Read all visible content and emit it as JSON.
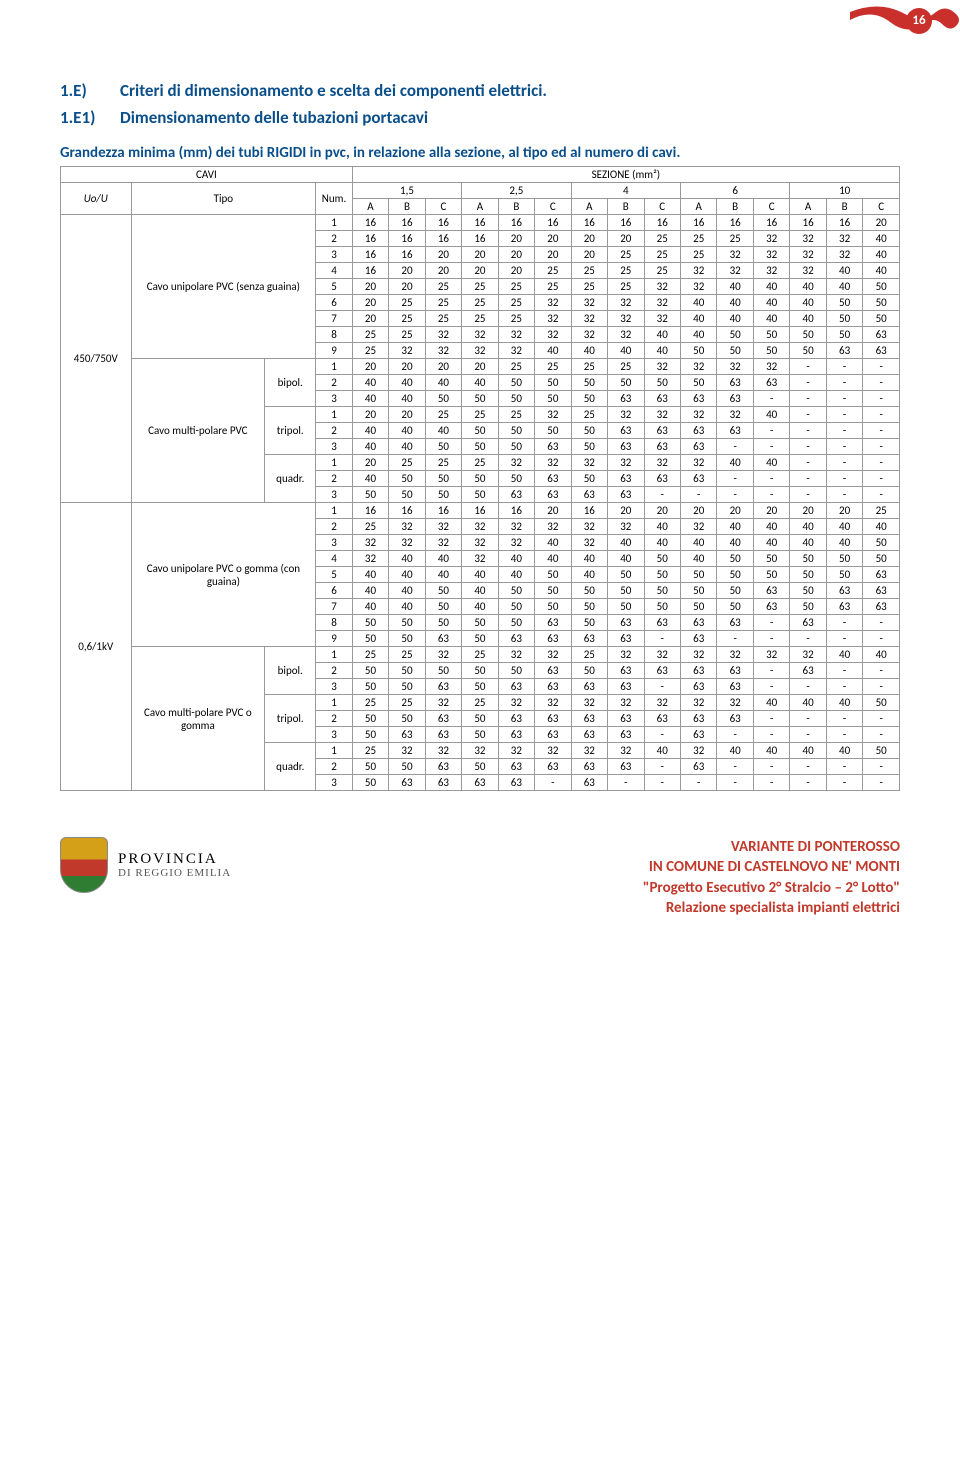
{
  "page_number": "16",
  "section_num_1": "1.E)",
  "section_title_1": "Criteri di dimensionamento e scelta dei componenti elettrici.",
  "section_num_2": "1.E1)",
  "section_title_2": "Dimensionamento delle tubazioni portacavi",
  "table_caption": "Grandezza minima (mm) dei tubi RIGIDI in pvc, in relazione alla sezione, al tipo ed al numero di cavi.",
  "labels": {
    "cavi": "CAVI",
    "sezione": "SEZIONE (mm²)",
    "uou": "Uo/U",
    "tipo": "Tipo",
    "num": "Num."
  },
  "section_headers": [
    "1,5",
    "2,5",
    "4",
    "6",
    "10"
  ],
  "abc": [
    "A",
    "B",
    "C"
  ],
  "voltages": [
    "450/750V",
    "0,6/1kV"
  ],
  "cable_types": {
    "uni_senza": "Cavo unipolare PVC (senza guaina)",
    "multi_pvc": "Cavo multi-polare PVC",
    "uni_con": "Cavo unipolare PVC o gomma (con guaina)",
    "multi_gomma": "Cavo multi-polare PVC o gomma"
  },
  "subtypes": {
    "bipol": "bipol.",
    "tripol": "tripol.",
    "quadr": "quadr."
  },
  "rows_450_uni": [
    [
      "1",
      "16",
      "16",
      "16",
      "16",
      "16",
      "16",
      "16",
      "16",
      "16",
      "16",
      "16",
      "16",
      "16",
      "16",
      "20"
    ],
    [
      "2",
      "16",
      "16",
      "16",
      "16",
      "20",
      "20",
      "20",
      "20",
      "25",
      "25",
      "25",
      "32",
      "32",
      "32",
      "40"
    ],
    [
      "3",
      "16",
      "16",
      "20",
      "20",
      "20",
      "20",
      "20",
      "25",
      "25",
      "25",
      "32",
      "32",
      "32",
      "32",
      "40"
    ],
    [
      "4",
      "16",
      "20",
      "20",
      "20",
      "20",
      "25",
      "25",
      "25",
      "25",
      "32",
      "32",
      "32",
      "32",
      "40",
      "40"
    ],
    [
      "5",
      "20",
      "20",
      "25",
      "25",
      "25",
      "25",
      "25",
      "25",
      "32",
      "32",
      "40",
      "40",
      "40",
      "40",
      "50"
    ],
    [
      "6",
      "20",
      "25",
      "25",
      "25",
      "25",
      "32",
      "32",
      "32",
      "32",
      "40",
      "40",
      "40",
      "40",
      "50",
      "50"
    ],
    [
      "7",
      "20",
      "25",
      "25",
      "25",
      "25",
      "32",
      "32",
      "32",
      "32",
      "40",
      "40",
      "40",
      "40",
      "50",
      "50"
    ],
    [
      "8",
      "25",
      "25",
      "32",
      "32",
      "32",
      "32",
      "32",
      "32",
      "40",
      "40",
      "50",
      "50",
      "50",
      "50",
      "63"
    ],
    [
      "9",
      "25",
      "32",
      "32",
      "32",
      "32",
      "40",
      "40",
      "40",
      "40",
      "50",
      "50",
      "50",
      "50",
      "63",
      "63"
    ]
  ],
  "rows_450_bipol": [
    [
      "1",
      "20",
      "20",
      "20",
      "20",
      "25",
      "25",
      "25",
      "25",
      "32",
      "32",
      "32",
      "32",
      "-",
      "-",
      "-"
    ],
    [
      "2",
      "40",
      "40",
      "40",
      "40",
      "50",
      "50",
      "50",
      "50",
      "50",
      "50",
      "63",
      "63",
      "-",
      "-",
      "-"
    ],
    [
      "3",
      "40",
      "40",
      "50",
      "50",
      "50",
      "50",
      "50",
      "63",
      "63",
      "63",
      "63",
      "-",
      "-",
      "-",
      "-"
    ]
  ],
  "rows_450_tripol": [
    [
      "1",
      "20",
      "20",
      "25",
      "25",
      "25",
      "32",
      "25",
      "32",
      "32",
      "32",
      "32",
      "40",
      "-",
      "-",
      "-"
    ],
    [
      "2",
      "40",
      "40",
      "40",
      "50",
      "50",
      "50",
      "50",
      "63",
      "63",
      "63",
      "63",
      "-",
      "-",
      "-",
      "-"
    ],
    [
      "3",
      "40",
      "40",
      "50",
      "50",
      "50",
      "63",
      "50",
      "63",
      "63",
      "63",
      "-",
      "-",
      "-",
      "-",
      "-"
    ]
  ],
  "rows_450_quadr": [
    [
      "1",
      "20",
      "25",
      "25",
      "25",
      "32",
      "32",
      "32",
      "32",
      "32",
      "32",
      "40",
      "40",
      "-",
      "-",
      "-"
    ],
    [
      "2",
      "40",
      "50",
      "50",
      "50",
      "50",
      "63",
      "50",
      "63",
      "63",
      "63",
      "-",
      "-",
      "-",
      "-",
      "-"
    ],
    [
      "3",
      "50",
      "50",
      "50",
      "50",
      "63",
      "63",
      "63",
      "63",
      "-",
      "-",
      "-",
      "-",
      "-",
      "-",
      "-"
    ]
  ],
  "rows_06_uni": [
    [
      "1",
      "16",
      "16",
      "16",
      "16",
      "16",
      "20",
      "16",
      "20",
      "20",
      "20",
      "20",
      "20",
      "20",
      "20",
      "25"
    ],
    [
      "2",
      "25",
      "32",
      "32",
      "32",
      "32",
      "32",
      "32",
      "32",
      "40",
      "32",
      "40",
      "40",
      "40",
      "40",
      "40"
    ],
    [
      "3",
      "32",
      "32",
      "32",
      "32",
      "32",
      "40",
      "32",
      "40",
      "40",
      "40",
      "40",
      "40",
      "40",
      "40",
      "50"
    ],
    [
      "4",
      "32",
      "40",
      "40",
      "32",
      "40",
      "40",
      "40",
      "40",
      "50",
      "40",
      "50",
      "50",
      "50",
      "50",
      "50"
    ],
    [
      "5",
      "40",
      "40",
      "40",
      "40",
      "40",
      "50",
      "40",
      "50",
      "50",
      "50",
      "50",
      "50",
      "50",
      "50",
      "63"
    ],
    [
      "6",
      "40",
      "40",
      "50",
      "40",
      "50",
      "50",
      "50",
      "50",
      "50",
      "50",
      "50",
      "63",
      "50",
      "63",
      "63"
    ],
    [
      "7",
      "40",
      "40",
      "50",
      "40",
      "50",
      "50",
      "50",
      "50",
      "50",
      "50",
      "50",
      "63",
      "50",
      "63",
      "63"
    ],
    [
      "8",
      "50",
      "50",
      "50",
      "50",
      "50",
      "63",
      "50",
      "63",
      "63",
      "63",
      "63",
      "-",
      "63",
      "-",
      "-"
    ],
    [
      "9",
      "50",
      "50",
      "63",
      "50",
      "63",
      "63",
      "63",
      "63",
      "-",
      "63",
      "-",
      "-",
      "-",
      "-",
      "-"
    ]
  ],
  "rows_06_bipol": [
    [
      "1",
      "25",
      "25",
      "32",
      "25",
      "32",
      "32",
      "25",
      "32",
      "32",
      "32",
      "32",
      "32",
      "32",
      "40",
      "40"
    ],
    [
      "2",
      "50",
      "50",
      "50",
      "50",
      "50",
      "63",
      "50",
      "63",
      "63",
      "63",
      "63",
      "-",
      "63",
      "-",
      "-"
    ],
    [
      "3",
      "50",
      "50",
      "63",
      "50",
      "63",
      "63",
      "63",
      "63",
      "-",
      "63",
      "63",
      "-",
      "-",
      "-",
      "-"
    ]
  ],
  "rows_06_tripol": [
    [
      "1",
      "25",
      "25",
      "32",
      "25",
      "32",
      "32",
      "32",
      "32",
      "32",
      "32",
      "32",
      "40",
      "40",
      "40",
      "50"
    ],
    [
      "2",
      "50",
      "50",
      "63",
      "50",
      "63",
      "63",
      "63",
      "63",
      "63",
      "63",
      "63",
      "-",
      "-",
      "-",
      "-"
    ],
    [
      "3",
      "50",
      "63",
      "63",
      "50",
      "63",
      "63",
      "63",
      "63",
      "-",
      "63",
      "-",
      "-",
      "-",
      "-",
      "-"
    ]
  ],
  "rows_06_quadr": [
    [
      "1",
      "25",
      "32",
      "32",
      "32",
      "32",
      "32",
      "32",
      "32",
      "40",
      "32",
      "40",
      "40",
      "40",
      "40",
      "50"
    ],
    [
      "2",
      "50",
      "50",
      "63",
      "50",
      "63",
      "63",
      "63",
      "63",
      "-",
      "63",
      "-",
      "-",
      "-",
      "-",
      "-"
    ],
    [
      "3",
      "50",
      "63",
      "63",
      "63",
      "63",
      "-",
      "63",
      "-",
      "-",
      "-",
      "-",
      "-",
      "-",
      "-",
      "-"
    ]
  ],
  "footer": {
    "org1": "PROVINCIA",
    "org2": "DI REGGIO EMILIA",
    "l1": "VARIANTE DI PONTEROSSO",
    "l2": "IN COMUNE DI CASTELNOVO NE' MONTI",
    "l3": "\"Progetto Esecutivo 2° Stralcio – 2° Lotto\"",
    "l4": "Relazione specialista impianti elettrici"
  },
  "colors": {
    "accent_red": "#c0392b",
    "heading_blue": "#0b4f8a",
    "border_gray": "#999999"
  }
}
